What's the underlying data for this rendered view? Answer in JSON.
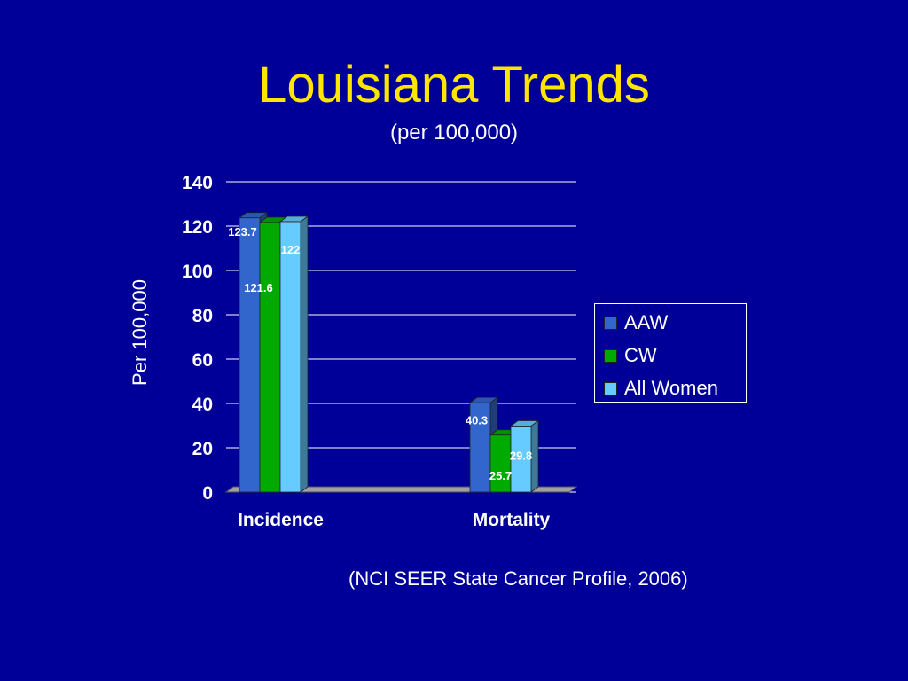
{
  "slide": {
    "title": "Louisiana Trends",
    "subtitle": "(per 100,000)",
    "source": "(NCI SEER State Cancer Profile, 2006)"
  },
  "chart_data": {
    "type": "bar",
    "categories": [
      "Incidence",
      "Mortality"
    ],
    "series": [
      {
        "name": "AAW",
        "values": [
          123.7,
          40.3
        ],
        "color": "#3366CC"
      },
      {
        "name": "CW",
        "values": [
          121.6,
          25.7
        ],
        "color": "#00AA00"
      },
      {
        "name": "All Women",
        "values": [
          122,
          29.8
        ],
        "color": "#66CCFF"
      }
    ],
    "ylabel": "Per 100,000",
    "ylim": [
      0,
      140
    ],
    "yticks": [
      0,
      20,
      40,
      60,
      80,
      100,
      120,
      140
    ],
    "grid": true,
    "legend": "right",
    "style": "3d-clustered-column"
  }
}
